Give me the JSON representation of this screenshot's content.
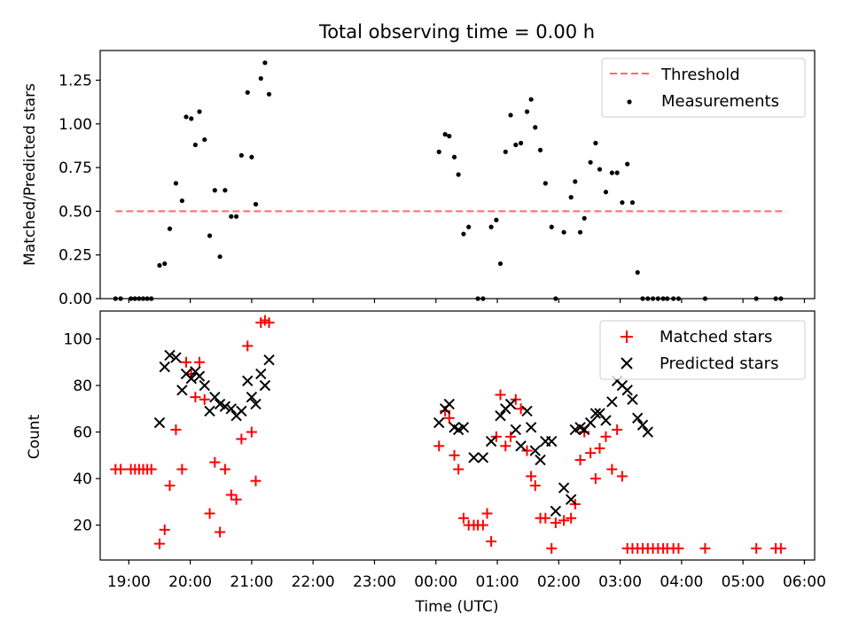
{
  "figure": {
    "title": "Total observing time = 0.00 h"
  },
  "chart_data": [
    {
      "type": "scatter",
      "ylabel": "Matched/Predicted stars",
      "ylim": [
        0,
        1.42
      ],
      "yticks": [
        0,
        0.25,
        0.5,
        0.75,
        1.0,
        1.25
      ],
      "ytick_labels": [
        "0.00",
        "0.25",
        "0.50",
        "0.75",
        "1.00",
        "1.25"
      ],
      "xlim": [
        "18:32",
        "06:10"
      ],
      "grid": false,
      "legend_position": "top-right",
      "legend": [
        {
          "label": "Threshold",
          "style": "dashed-line",
          "color": "#ff6b6b"
        },
        {
          "label": "Measurements",
          "style": "dot",
          "color": "#000000"
        }
      ],
      "threshold": {
        "name": "Threshold",
        "value": 0.5,
        "x_start": "18:47",
        "x_end": "05:42",
        "color": "#ff6b6b"
      },
      "series": [
        {
          "name": "Measurements",
          "color": "#000000",
          "x": [
            "18:47",
            "18:52",
            "19:02",
            "19:06",
            "19:10",
            "19:14",
            "19:18",
            "19:22",
            "19:30",
            "19:35",
            "19:40",
            "19:46",
            "19:52",
            "19:56",
            "20:01",
            "20:05",
            "20:09",
            "20:14",
            "20:19",
            "20:24",
            "20:29",
            "20:34",
            "20:40",
            "20:45",
            "20:50",
            "20:56",
            "21:00",
            "21:04",
            "21:09",
            "21:13",
            "21:17",
            "00:03",
            "00:09",
            "00:13",
            "00:18",
            "00:22",
            "00:27",
            "00:32",
            "00:41",
            "00:46",
            "00:54",
            "00:59",
            "01:03",
            "01:08",
            "01:13",
            "01:18",
            "01:23",
            "01:29",
            "01:33",
            "01:37",
            "01:42",
            "01:47",
            "01:53",
            "01:57",
            "02:05",
            "02:12",
            "02:16",
            "02:21",
            "02:25",
            "02:31",
            "02:36",
            "02:40",
            "02:46",
            "02:52",
            "02:57",
            "03:02",
            "03:07",
            "03:12",
            "03:17",
            "03:22",
            "03:27",
            "03:32",
            "03:37",
            "03:42",
            "03:46",
            "03:52",
            "03:57",
            "04:23",
            "05:13",
            "05:32",
            "05:37"
          ],
          "y": [
            0.0,
            0.0,
            0.0,
            0.0,
            0.0,
            0.0,
            0.0,
            0.0,
            0.19,
            0.2,
            0.4,
            0.66,
            0.56,
            1.04,
            1.03,
            0.88,
            1.07,
            0.91,
            0.36,
            0.62,
            0.24,
            0.62,
            0.47,
            0.47,
            0.82,
            1.18,
            0.81,
            0.54,
            1.26,
            1.35,
            1.17,
            0.84,
            0.94,
            0.93,
            0.81,
            0.71,
            0.37,
            0.41,
            0.0,
            0.0,
            0.41,
            0.45,
            0.2,
            0.84,
            1.05,
            0.88,
            0.89,
            1.07,
            1.14,
            0.98,
            0.85,
            0.66,
            0.41,
            0.0,
            0.38,
            0.58,
            0.67,
            0.38,
            0.46,
            0.78,
            0.89,
            0.74,
            0.61,
            0.72,
            0.72,
            0.55,
            0.77,
            0.55,
            0.15,
            0.0,
            0.0,
            0.0,
            0.0,
            0.0,
            0.0,
            0.0,
            0.0,
            0.0,
            0.0,
            0.0,
            0.0
          ]
        }
      ]
    },
    {
      "type": "scatter",
      "xlabel": "Time (UTC)",
      "ylabel": "Count",
      "ylim": [
        5,
        112
      ],
      "yticks": [
        20,
        40,
        60,
        80,
        100
      ],
      "ytick_labels": [
        "20",
        "40",
        "60",
        "80",
        "100"
      ],
      "xlim": [
        "18:32",
        "06:10"
      ],
      "xticks": [
        "19:00",
        "20:00",
        "21:00",
        "22:00",
        "23:00",
        "00:00",
        "01:00",
        "02:00",
        "03:00",
        "04:00",
        "05:00",
        "06:00"
      ],
      "grid": false,
      "legend_position": "top-right",
      "legend": [
        {
          "label": "Matched stars",
          "style": "plus",
          "color": "#ff0000"
        },
        {
          "label": "Predicted stars",
          "style": "x",
          "color": "#000000"
        }
      ],
      "series": [
        {
          "name": "Matched stars",
          "color": "#ff0000",
          "x": [
            "18:47",
            "18:52",
            "19:02",
            "19:06",
            "19:10",
            "19:14",
            "19:18",
            "19:22",
            "19:30",
            "19:35",
            "19:40",
            "19:46",
            "19:52",
            "19:56",
            "20:01",
            "20:05",
            "20:09",
            "20:14",
            "20:19",
            "20:24",
            "20:29",
            "20:34",
            "20:40",
            "20:45",
            "20:50",
            "20:56",
            "21:00",
            "21:04",
            "21:09",
            "21:13",
            "21:17",
            "00:03",
            "00:09",
            "00:13",
            "00:18",
            "00:22",
            "00:27",
            "00:32",
            "00:37",
            "00:41",
            "00:46",
            "00:50",
            "00:54",
            "00:59",
            "01:03",
            "01:08",
            "01:13",
            "01:18",
            "01:23",
            "01:29",
            "01:33",
            "01:37",
            "01:42",
            "01:47",
            "01:53",
            "01:57",
            "02:05",
            "02:12",
            "02:16",
            "02:21",
            "02:25",
            "02:31",
            "02:36",
            "02:40",
            "02:46",
            "02:52",
            "02:57",
            "03:02",
            "03:07",
            "03:12",
            "03:17",
            "03:22",
            "03:27",
            "03:32",
            "03:37",
            "03:42",
            "03:46",
            "03:52",
            "03:57",
            "04:23",
            "05:13",
            "05:32",
            "05:37"
          ],
          "y": [
            44,
            44,
            44,
            44,
            44,
            44,
            44,
            44,
            12,
            18,
            37,
            61,
            44,
            90,
            85,
            75,
            90,
            74,
            25,
            47,
            17,
            44,
            33,
            31,
            57,
            97,
            60,
            39,
            107,
            108,
            107,
            54,
            69,
            66,
            50,
            44,
            23,
            20,
            20,
            20,
            20,
            25,
            13,
            58,
            76,
            54,
            58,
            74,
            70,
            52,
            41,
            37,
            23,
            23,
            10,
            21,
            22,
            23,
            29,
            48,
            60,
            51,
            40,
            53,
            58,
            44,
            61,
            41,
            10,
            10,
            10,
            10,
            10,
            10,
            10,
            10,
            10,
            10,
            10,
            10,
            10,
            10,
            10
          ]
        },
        {
          "name": "Predicted stars",
          "color": "#000000",
          "x": [
            "19:30",
            "19:35",
            "19:40",
            "19:46",
            "19:52",
            "19:56",
            "20:01",
            "20:05",
            "20:09",
            "20:14",
            "20:19",
            "20:24",
            "20:29",
            "20:34",
            "20:40",
            "20:45",
            "20:50",
            "20:56",
            "21:00",
            "21:04",
            "21:09",
            "21:13",
            "21:17",
            "00:03",
            "00:09",
            "00:13",
            "00:18",
            "00:22",
            "00:27",
            "00:37",
            "00:46",
            "00:54",
            "01:03",
            "01:08",
            "01:13",
            "01:18",
            "01:23",
            "01:29",
            "01:33",
            "01:37",
            "01:42",
            "01:47",
            "01:53",
            "01:57",
            "02:05",
            "02:12",
            "02:16",
            "02:21",
            "02:25",
            "02:31",
            "02:36",
            "02:40",
            "02:46",
            "02:52",
            "02:57",
            "03:02",
            "03:07",
            "03:12",
            "03:17",
            "03:22",
            "03:27"
          ],
          "y": [
            64,
            88,
            93,
            92,
            78,
            85,
            83,
            86,
            84,
            80,
            69,
            75,
            72,
            71,
            70,
            67,
            69,
            82,
            75,
            72,
            85,
            80,
            91,
            64,
            70,
            72,
            62,
            61,
            62,
            49,
            49,
            56,
            67,
            70,
            72,
            61,
            54,
            69,
            62,
            52,
            48,
            56,
            56,
            26,
            36,
            31,
            61,
            62,
            61,
            64,
            68,
            68,
            65,
            73,
            82,
            80,
            78,
            74,
            66,
            63,
            60
          ]
        }
      ]
    }
  ]
}
